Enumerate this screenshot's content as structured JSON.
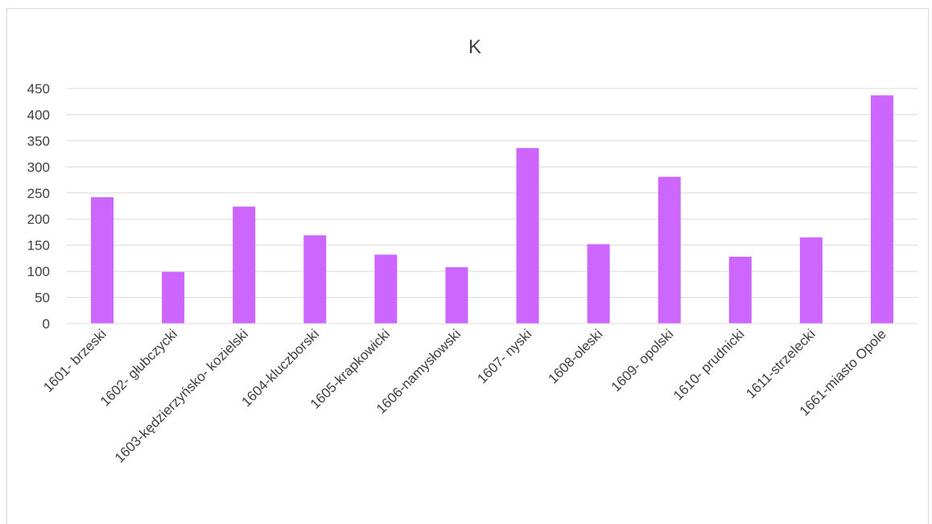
{
  "chart_data": {
    "type": "bar",
    "title": "K",
    "xlabel": "",
    "ylabel": "",
    "ylim": [
      0,
      450
    ],
    "yticks": [
      0,
      50,
      100,
      150,
      200,
      250,
      300,
      350,
      400,
      450
    ],
    "grid": true,
    "legend": "none",
    "bar_color": "#cc66ff",
    "categories": [
      "1601- brzeski",
      "1602- głubczycki",
      "1603-kędzierzyńsko- kozielski",
      "1604-kluczborski",
      "1605-krapkowicki",
      "1606-namysłowski",
      "1607- nyski",
      "1608-oleski",
      "1609- opolski",
      "1610- prudnicki",
      "1611-strzelecki",
      "1661-miasto Opole"
    ],
    "values": [
      242,
      99,
      224,
      169,
      132,
      108,
      336,
      152,
      281,
      128,
      165,
      437
    ]
  }
}
